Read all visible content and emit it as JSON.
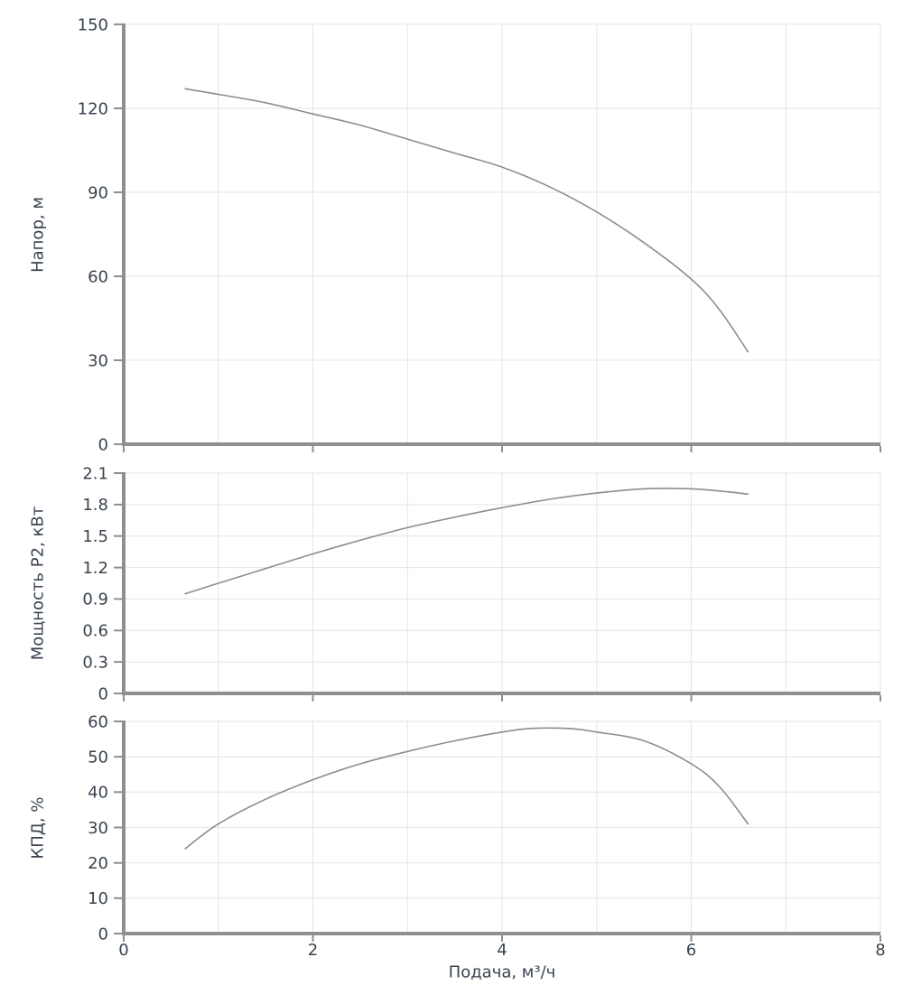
{
  "colors": {
    "curve": "#8d8d8d",
    "grid": "#e4e4e4",
    "axis": "#8f8f8f",
    "text": "#39434e",
    "background": "#ffffff"
  },
  "chart_data": [
    {
      "type": "line",
      "name": "head",
      "title": "",
      "ylabel": "Напор, м",
      "xlabel": "Подача, м³/ч",
      "xlim": [
        0,
        8
      ],
      "ylim": [
        0,
        150
      ],
      "xticks": [
        0,
        2,
        4,
        6,
        8
      ],
      "yticks": [
        0,
        30,
        60,
        90,
        120,
        150
      ],
      "grid": true,
      "legend": false,
      "series": [
        {
          "name": "Напор",
          "points": [
            [
              0.65,
              127
            ],
            [
              1,
              125
            ],
            [
              1.5,
              122
            ],
            [
              2,
              118
            ],
            [
              2.5,
              114
            ],
            [
              3,
              109
            ],
            [
              3.5,
              104
            ],
            [
              4,
              99
            ],
            [
              4.5,
              92
            ],
            [
              5,
              83
            ],
            [
              5.5,
              72
            ],
            [
              6,
              59
            ],
            [
              6.3,
              48
            ],
            [
              6.6,
              33
            ]
          ]
        }
      ]
    },
    {
      "type": "line",
      "name": "power",
      "title": "",
      "ylabel": "Мощность P2, кВт",
      "xlabel": "Подача, м³/ч",
      "xlim": [
        0,
        8
      ],
      "ylim": [
        0,
        2.1
      ],
      "xticks": [
        0,
        2,
        4,
        6,
        8
      ],
      "yticks": [
        0,
        0.3,
        0.6,
        0.9,
        1.2,
        1.5,
        1.8,
        2.1
      ],
      "grid": true,
      "legend": false,
      "series": [
        {
          "name": "Мощность P2",
          "points": [
            [
              0.65,
              0.95
            ],
            [
              1,
              1.05
            ],
            [
              1.5,
              1.19
            ],
            [
              2,
              1.33
            ],
            [
              2.5,
              1.46
            ],
            [
              3,
              1.58
            ],
            [
              3.5,
              1.68
            ],
            [
              4,
              1.77
            ],
            [
              4.5,
              1.85
            ],
            [
              5,
              1.91
            ],
            [
              5.5,
              1.95
            ],
            [
              6,
              1.95
            ],
            [
              6.3,
              1.93
            ],
            [
              6.6,
              1.9
            ]
          ]
        }
      ]
    },
    {
      "type": "line",
      "name": "efficiency",
      "title": "",
      "ylabel": "КПД, %",
      "xlabel": "Подача, м³/ч",
      "xlim": [
        0,
        8
      ],
      "ylim": [
        0,
        60
      ],
      "xticks": [
        0,
        2,
        4,
        6,
        8
      ],
      "yticks": [
        0,
        10,
        20,
        30,
        40,
        50,
        60
      ],
      "grid": true,
      "legend": false,
      "series": [
        {
          "name": "КПД",
          "points": [
            [
              0.65,
              24
            ],
            [
              1,
              31
            ],
            [
              1.5,
              38
            ],
            [
              2,
              43.5
            ],
            [
              2.5,
              48
            ],
            [
              3,
              51.5
            ],
            [
              3.5,
              54.5
            ],
            [
              4,
              57
            ],
            [
              4.3,
              58
            ],
            [
              4.7,
              58
            ],
            [
              5,
              57
            ],
            [
              5.5,
              54.5
            ],
            [
              6,
              48
            ],
            [
              6.3,
              41.5
            ],
            [
              6.6,
              31
            ]
          ]
        }
      ]
    }
  ]
}
